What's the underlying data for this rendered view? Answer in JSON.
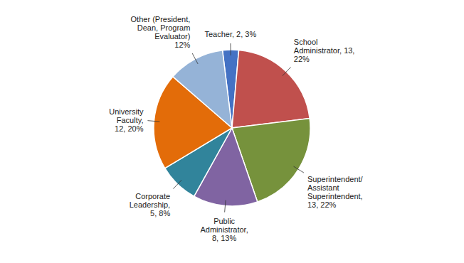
{
  "chart_data": {
    "type": "pie",
    "categories": [
      "Teacher, 2, 3%",
      "School\nAdministrator, 13,\n22%",
      "Superintendent/\nAssistant\nSuperintendent,\n13, 22%",
      "Public\nAdministrator,\n8, 13%",
      "Corporate\nLeadership,\n5, 8%",
      "University\nFaculty,\n12, 20%",
      "Other (President,\nDean, Program\nEvaluator)\n12%"
    ],
    "values": [
      2,
      13,
      13,
      8,
      5,
      12,
      7
    ],
    "colors": [
      "#4472c4",
      "#c0504d",
      "#76923c",
      "#8064a2",
      "#31849b",
      "#e36c09",
      "#95b3d7"
    ]
  }
}
